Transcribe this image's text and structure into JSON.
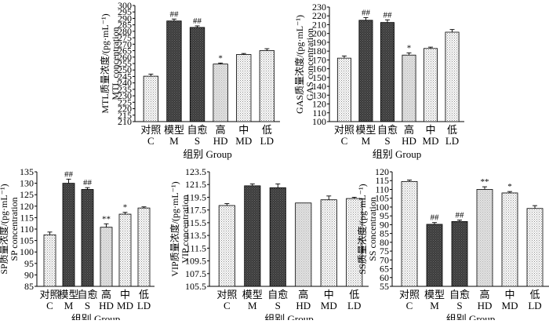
{
  "figure": {
    "group_label": "组别 Group"
  },
  "chart_data": [
    {
      "id": "mtl",
      "type": "bar",
      "ylabel_cn": "MTL质量浓度/(pg·mL⁻¹)",
      "ylabel_en": "MTL concentration",
      "xlabel": "组别 Group",
      "ylim": [
        210,
        300
      ],
      "yticks": [
        210,
        215,
        220,
        225,
        230,
        235,
        240,
        245,
        250,
        255,
        260,
        265,
        270,
        275,
        280,
        285,
        290,
        295,
        300
      ],
      "categories_cn": [
        "对照",
        "模型",
        "自愈",
        "高",
        "中",
        "低"
      ],
      "categories_en": [
        "C",
        "M",
        "S",
        "HD",
        "MD",
        "LD"
      ],
      "values": [
        245.2,
        288.0,
        283.0,
        254.6,
        262.0,
        265.0
      ],
      "errors": [
        1.6,
        1.5,
        1.2,
        0.8,
        0.8,
        1.5
      ],
      "annotations": [
        "",
        "##",
        "##",
        "*",
        "",
        ""
      ],
      "patterns": [
        "dots",
        "dark",
        "dark",
        "light",
        "dots",
        "dots"
      ]
    },
    {
      "id": "gas",
      "type": "bar",
      "ylabel_cn": "GAS质量浓度/(pg·mL⁻¹)",
      "ylabel_en": "GAS concentration",
      "xlabel": "组别 Group",
      "ylim": [
        100,
        230
      ],
      "yticks": [
        100,
        110,
        120,
        130,
        140,
        150,
        160,
        170,
        180,
        190,
        200,
        210,
        220,
        230
      ],
      "categories_cn": [
        "对照",
        "模型",
        "自愈",
        "高",
        "中",
        "低"
      ],
      "categories_en": [
        "C",
        "M",
        "S",
        "HD",
        "MD",
        "LD"
      ],
      "values": [
        172,
        215,
        212.5,
        175.5,
        183,
        201.5
      ],
      "errors": [
        2.5,
        3.0,
        3.0,
        2.5,
        1.5,
        3.0
      ],
      "annotations": [
        "",
        "##",
        "##",
        "*",
        "",
        ""
      ],
      "patterns": [
        "dots",
        "dark",
        "dark",
        "light",
        "dots",
        "dots"
      ]
    },
    {
      "id": "sp",
      "type": "bar",
      "ylabel_cn": "SP质量浓度/(pg·mL⁻¹)",
      "ylabel_en": "SP concentration",
      "xlabel": "组别 Group",
      "ylim": [
        85,
        135
      ],
      "yticks": [
        85,
        90,
        95,
        100,
        105,
        110,
        115,
        120,
        125,
        130,
        135
      ],
      "categories_cn": [
        "对照",
        "模型",
        "自愈",
        "高",
        "中",
        "低"
      ],
      "categories_en": [
        "C",
        "M",
        "S",
        "HD",
        "MD",
        "LD"
      ],
      "values": [
        107.5,
        130,
        127.3,
        110.8,
        116.5,
        119.2
      ],
      "errors": [
        1.2,
        1.8,
        0.8,
        1.5,
        0.8,
        0.5
      ],
      "annotations": [
        "",
        "##",
        "##",
        "**",
        "*",
        ""
      ],
      "patterns": [
        "dots",
        "dark",
        "dark",
        "light",
        "dots",
        "dots"
      ]
    },
    {
      "id": "vip",
      "type": "bar",
      "ylabel_cn": "VIP质量浓度/(pg·mL⁻¹)",
      "ylabel_en": "VIP concentration",
      "xlabel": "组别 Group",
      "ylim": [
        105.5,
        123.5
      ],
      "yticks": [
        105.5,
        107.5,
        109.5,
        111.5,
        113.5,
        115.5,
        117.5,
        119.5,
        121.5,
        123.5
      ],
      "categories_cn": [
        "对照",
        "模型",
        "自愈",
        "高",
        "中",
        "低"
      ],
      "categories_en": [
        "C",
        "M",
        "S",
        "HD",
        "MD",
        "LD"
      ],
      "values": [
        118.2,
        121.3,
        121.0,
        118.6,
        119.1,
        119.3
      ],
      "errors": [
        0.3,
        0.3,
        0.6,
        0.0,
        0.6,
        0.2
      ],
      "annotations": [
        "",
        "",
        "",
        "",
        "",
        ""
      ],
      "patterns": [
        "dots",
        "dark",
        "dark",
        "light",
        "dots",
        "dots"
      ]
    },
    {
      "id": "ss",
      "type": "bar",
      "ylabel_cn": "SS质量浓度/(pg·mL⁻¹)",
      "ylabel_en": "SS concentration",
      "xlabel": "组别 Group",
      "ylim": [
        55,
        120
      ],
      "yticks": [
        55,
        60,
        65,
        70,
        75,
        80,
        85,
        90,
        95,
        100,
        105,
        110,
        115,
        120
      ],
      "categories_cn": [
        "对照",
        "模型",
        "自愈",
        "高",
        "中",
        "低"
      ],
      "categories_en": [
        "C",
        "M",
        "S",
        "HD",
        "MD",
        "LD"
      ],
      "values": [
        114.5,
        90.2,
        91.8,
        110,
        108,
        99.2
      ],
      "errors": [
        0.8,
        1.0,
        0.8,
        1.5,
        0.8,
        1.6
      ],
      "annotations": [
        "",
        "##",
        "##",
        "**",
        "*",
        ""
      ],
      "patterns": [
        "dots",
        "dark",
        "dark",
        "light",
        "dots",
        "dots"
      ]
    }
  ]
}
